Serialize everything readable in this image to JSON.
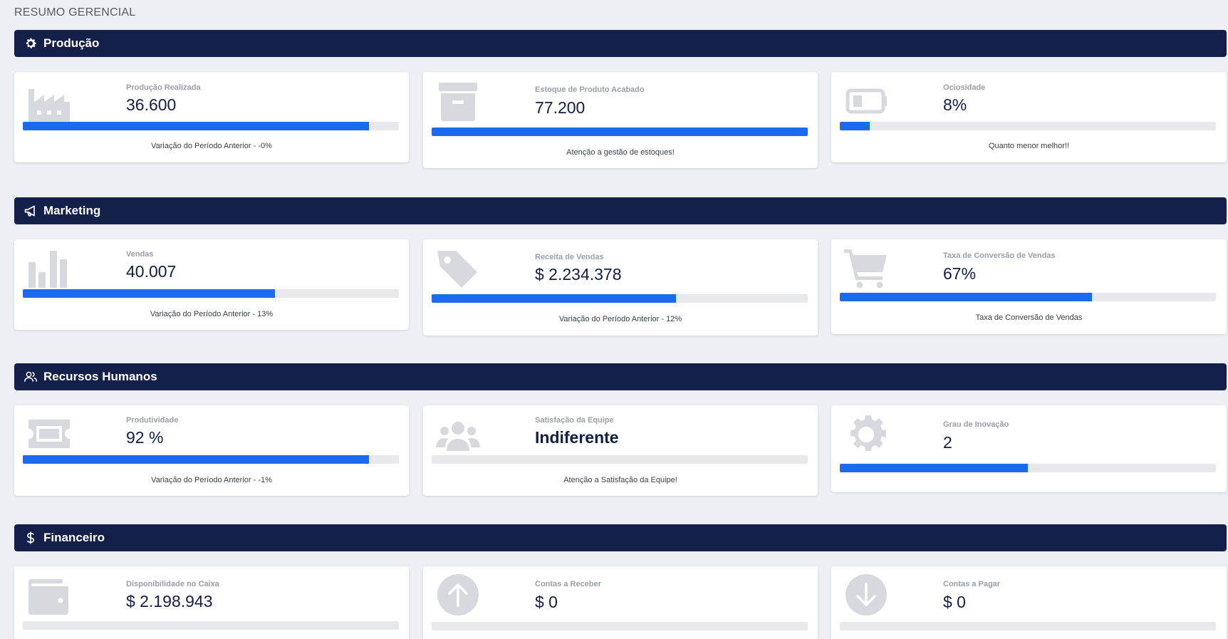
{
  "page_title": "RESUMO GERENCIAL",
  "colors": {
    "header_bg": "#14204a",
    "bar_fill": "#1b6af0",
    "bar_track": "#e8e9ec",
    "icon_gray": "#d7d9de"
  },
  "sections": [
    {
      "title": "Produção",
      "icon": "gear-icon",
      "cards": [
        {
          "icon": "factory-icon",
          "label": "Produção Realizada",
          "value": "36.600",
          "progress": 0.92,
          "note": "Variação do Período Anterior - -0%"
        },
        {
          "icon": "archive-box-icon",
          "label": "Estoque de Produto Acabado",
          "value": "77.200",
          "progress": 1.0,
          "note": "Atenção a gestão de estoques!"
        },
        {
          "icon": "battery-icon",
          "label": "Ociosidade",
          "value": "8%",
          "progress": 0.08,
          "note": "Quanto menor melhor!!"
        }
      ]
    },
    {
      "title": "Marketing",
      "icon": "megaphone-icon",
      "cards": [
        {
          "icon": "bar-chart-icon",
          "label": "Vendas",
          "value": "40.007",
          "progress": 0.67,
          "note": "Variação do Período Anterior - 13%"
        },
        {
          "icon": "price-tag-icon",
          "label": "Receita de Vendas",
          "value": "$ 2.234.378",
          "progress": 0.65,
          "note": "Variação do Período Anterior - 12%"
        },
        {
          "icon": "shopping-cart-icon",
          "label": "Taxa de Conversão de Vendas",
          "value": "67%",
          "progress": 0.67,
          "note": "Taxa de Conversão de Vendas"
        }
      ]
    },
    {
      "title": "Recursos Humanos",
      "icon": "users-outline-icon",
      "cards": [
        {
          "icon": "ticket-icon",
          "label": "Produtividade",
          "value": "92 %",
          "progress": 0.92,
          "note": "Variação do Período Anterior - -1%"
        },
        {
          "icon": "team-icon",
          "label": "Satisfação da Equipe",
          "value": "Indiferente",
          "progress": 0,
          "note": "Atenção a Satisfação da Equipe!"
        },
        {
          "icon": "cog-icon",
          "label": "Grau de Inovação",
          "value": "2",
          "progress": 0.5,
          "note": ""
        }
      ]
    },
    {
      "title": "Financeiro",
      "icon": "dollar-icon",
      "cards": [
        {
          "icon": "wallet-icon",
          "label": "Disponibilidade no Caixa",
          "value": "$ 2.198.943",
          "progress": 0,
          "note": ""
        },
        {
          "icon": "arrow-up-circle-icon",
          "label": "Contas a Receber",
          "value": "$ 0",
          "progress": 0,
          "note": ""
        },
        {
          "icon": "arrow-down-circle-icon",
          "label": "Contas a Pagar",
          "value": "$ 0",
          "progress": 0,
          "note": ""
        }
      ]
    }
  ]
}
